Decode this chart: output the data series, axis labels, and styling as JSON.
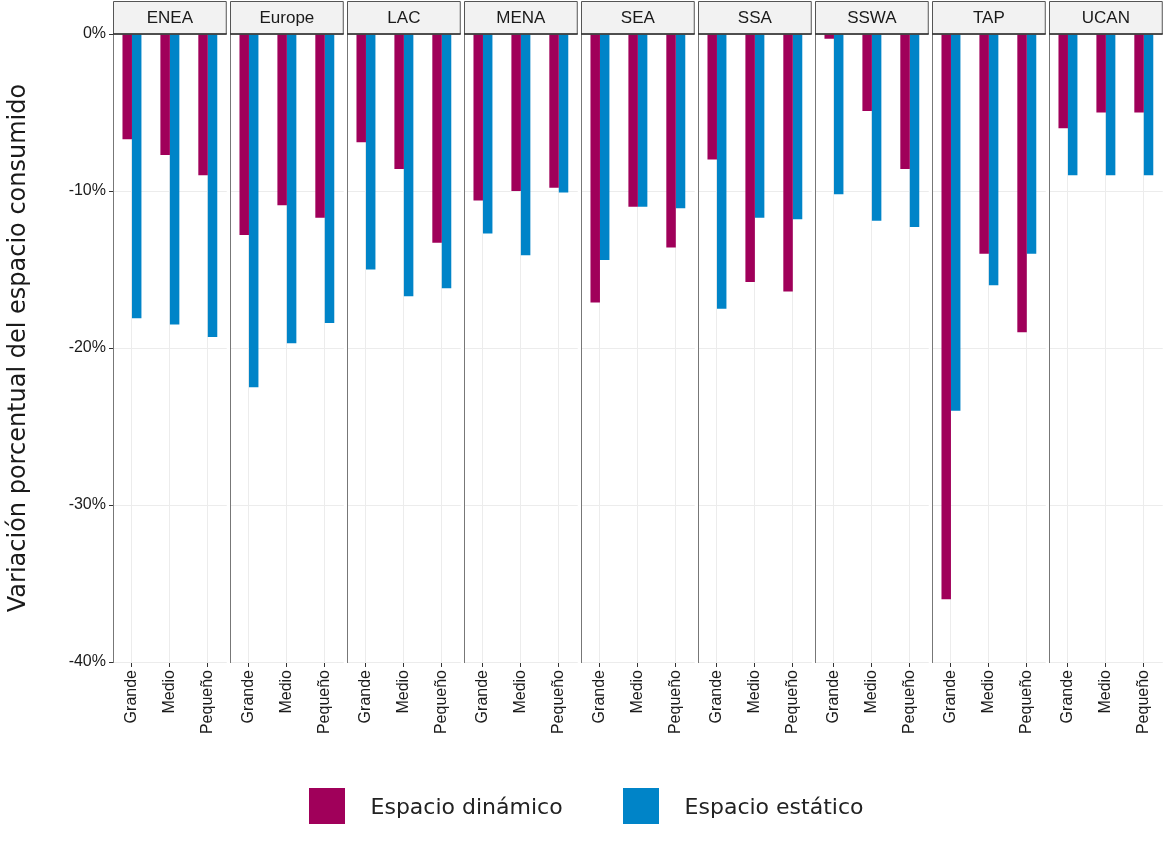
{
  "chart_data": [
    {
      "type": "bar",
      "title": "ENEA",
      "ylabel": "Variación porcentual del espacio consumido",
      "categories": [
        "Grande",
        "Medio",
        "Pequeño"
      ],
      "legend": "bottom",
      "grid": true,
      "ylim": [
        -40,
        0
      ],
      "yticks": [
        {
          "value": -40,
          "label": "-40%"
        },
        {
          "value": -30,
          "label": "-30%"
        },
        {
          "value": -20,
          "label": "-20%"
        },
        {
          "value": -10,
          "label": "-10%"
        },
        {
          "value": 0,
          "label": "0%"
        }
      ],
      "series": [
        {
          "name": "Espacio dinámico",
          "color": "#a0005a",
          "values": [
            -6.7,
            -7.7,
            -9.0
          ]
        },
        {
          "name": "Espacio estático",
          "color": "#0084c8",
          "values": [
            -18.1,
            -18.5,
            -19.3
          ]
        }
      ]
    },
    {
      "type": "bar",
      "title": "Europe",
      "categories": [
        "Grande",
        "Medio",
        "Pequeño"
      ],
      "grid": true,
      "tick_labels": "x",
      "ylim": [
        -40,
        0
      ],
      "yticks": [
        -40,
        -30,
        -20,
        -10,
        0
      ],
      "series": [
        {
          "color": "#a0005a",
          "values": [
            -12.8,
            -10.9,
            -11.7
          ]
        },
        {
          "color": "#0084c8",
          "values": [
            -22.5,
            -19.7,
            -18.4
          ]
        }
      ]
    },
    {
      "type": "bar",
      "title": "LAC",
      "categories": [
        "Grande",
        "Medio",
        "Pequeño"
      ],
      "grid": true,
      "tick_labels": "x",
      "ylim": [
        -40,
        0
      ],
      "yticks": [
        -40,
        -30,
        -20,
        -10,
        0
      ],
      "series": [
        {
          "color": "#a0005a",
          "values": [
            -6.9,
            -8.6,
            -13.3
          ]
        },
        {
          "color": "#0084c8",
          "values": [
            -15.0,
            -16.7,
            -16.2
          ]
        }
      ]
    },
    {
      "type": "bar",
      "title": "MENA",
      "categories": [
        "Grande",
        "Medio",
        "Pequeño"
      ],
      "grid": true,
      "tick_labels": "x",
      "ylim": [
        -40,
        0
      ],
      "yticks": [
        -40,
        -30,
        -20,
        -10,
        0
      ],
      "series": [
        {
          "color": "#a0005a",
          "values": [
            -10.6,
            -10.0,
            -9.8
          ]
        },
        {
          "color": "#0084c8",
          "values": [
            -12.7,
            -14.1,
            -10.1
          ]
        }
      ]
    },
    {
      "type": "bar",
      "title": "SEA",
      "categories": [
        "Grande",
        "Medio",
        "Pequeño"
      ],
      "grid": true,
      "tick_labels": "x",
      "ylim": [
        -40,
        0
      ],
      "yticks": [
        -40,
        -30,
        -20,
        -10,
        0
      ],
      "series": [
        {
          "color": "#a0005a",
          "values": [
            -17.1,
            -11.0,
            -13.6
          ]
        },
        {
          "color": "#0084c8",
          "values": [
            -14.4,
            -11.0,
            -11.1
          ]
        }
      ]
    },
    {
      "type": "bar",
      "title": "SSA",
      "categories": [
        "Grande",
        "Medio",
        "Pequeño"
      ],
      "grid": true,
      "tick_labels": "x",
      "ylim": [
        -40,
        0
      ],
      "yticks": [
        -40,
        -30,
        -20,
        -10,
        0
      ],
      "series": [
        {
          "color": "#a0005a",
          "values": [
            -8.0,
            -15.8,
            -16.4
          ]
        },
        {
          "color": "#0084c8",
          "values": [
            -17.5,
            -11.7,
            -11.8
          ]
        }
      ]
    },
    {
      "type": "bar",
      "title": "SSWA",
      "categories": [
        "Grande",
        "Medio",
        "Pequeño"
      ],
      "grid": true,
      "tick_labels": "x",
      "ylim": [
        -40,
        0
      ],
      "yticks": [
        -40,
        -30,
        -20,
        -10,
        0
      ],
      "series": [
        {
          "color": "#a0005a",
          "values": [
            -0.3,
            -4.9,
            -8.6
          ]
        },
        {
          "color": "#0084c8",
          "values": [
            -10.2,
            -11.9,
            -12.3
          ]
        }
      ]
    },
    {
      "type": "bar",
      "title": "TAP",
      "categories": [
        "Grande",
        "Medio",
        "Pequeño"
      ],
      "grid": true,
      "tick_labels": "x",
      "ylim": [
        -40,
        0
      ],
      "yticks": [
        -40,
        -30,
        -20,
        -10,
        0
      ],
      "series": [
        {
          "color": "#a0005a",
          "values": [
            -36.0,
            -14.0,
            -19.0
          ]
        },
        {
          "color": "#0084c8",
          "values": [
            -24.0,
            -16.0,
            -14.0
          ]
        }
      ]
    },
    {
      "type": "bar",
      "title": "UCAN",
      "categories": [
        "Grande",
        "Medio",
        "Pequeño"
      ],
      "grid": true,
      "tick_labels": "x",
      "ylim": [
        -40,
        0
      ],
      "yticks": [
        -40,
        -30,
        -20,
        -10,
        0
      ],
      "series": [
        {
          "color": "#a0005a",
          "values": [
            -6.0,
            -5.0,
            -5.0
          ]
        },
        {
          "color": "#0084c8",
          "values": [
            -9.0,
            -9.0,
            -9.0
          ]
        }
      ]
    }
  ]
}
